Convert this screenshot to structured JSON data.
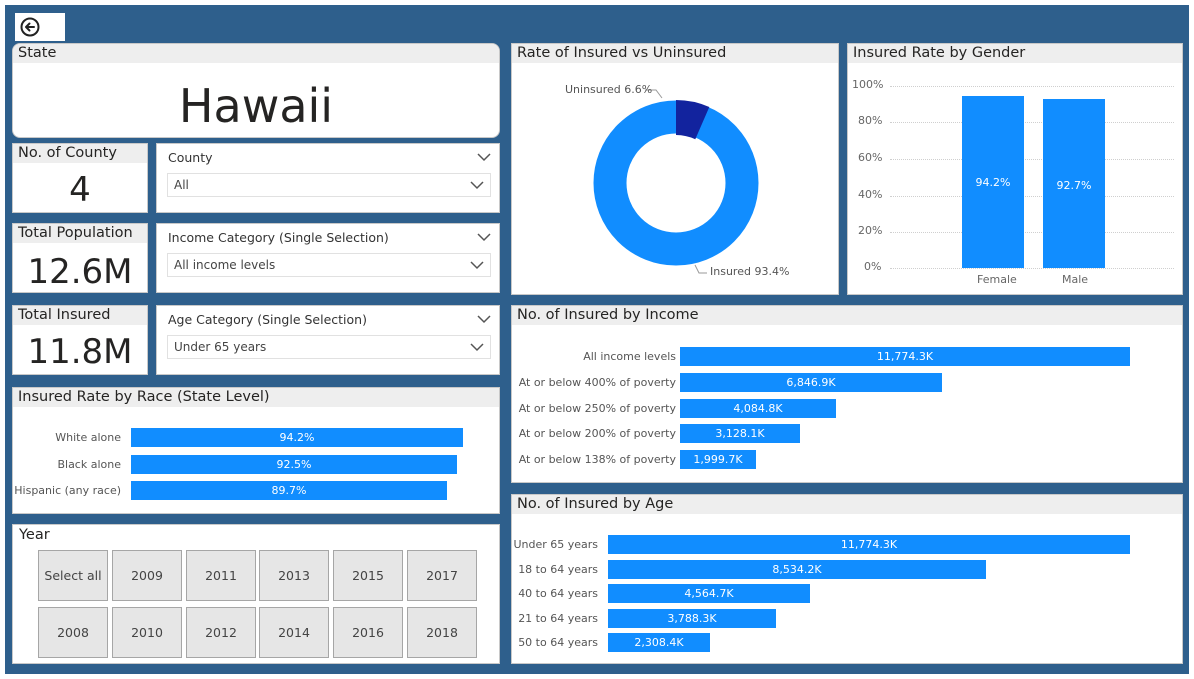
{
  "back_button": {
    "icon": "back-arrow-icon"
  },
  "state_card": {
    "title": "State",
    "value": "Hawaii"
  },
  "county_count": {
    "title": "No. of County",
    "value": "4"
  },
  "total_population": {
    "title": "Total Population",
    "value": "12.6M"
  },
  "total_insured": {
    "title": "Total Insured",
    "value": "11.8M"
  },
  "county_slicer": {
    "title": "County",
    "selected": "All"
  },
  "income_slicer": {
    "title": "Income Category (Single Selection)",
    "selected": "All income levels"
  },
  "age_slicer": {
    "title": "Age Category (Single Selection)",
    "selected": "Under 65 years"
  },
  "race_chart": {
    "title": "Insured Rate by Race (State Level)",
    "rows": [
      {
        "label": "White alone",
        "value_label": "94.2%"
      },
      {
        "label": "Black alone",
        "value_label": "92.5%"
      },
      {
        "label": "Hispanic (any race)",
        "value_label": "89.7%"
      }
    ]
  },
  "year_slicer": {
    "title": "Year",
    "row1": [
      "Select all",
      "2009",
      "2011",
      "2013",
      "2015",
      "2017"
    ],
    "row2": [
      "2008",
      "2010",
      "2012",
      "2014",
      "2016",
      "2018"
    ]
  },
  "donut_chart": {
    "title": "Rate of Insured vs Uninsured",
    "uninsured_label": "Uninsured 6.6%",
    "insured_label": "Insured 93.4%"
  },
  "gender_chart": {
    "title": "Insured Rate by Gender",
    "yticks": [
      "100%",
      "80%",
      "60%",
      "40%",
      "20%",
      "0%"
    ],
    "bars": [
      {
        "label": "Female",
        "value_label": "94.2%"
      },
      {
        "label": "Male",
        "value_label": "92.7%"
      }
    ]
  },
  "income_chart": {
    "title": "No. of Insured by Income",
    "rows": [
      {
        "label": "All income levels",
        "value_label": "11,774.3K"
      },
      {
        "label": "At or below 400% of poverty",
        "value_label": "6,846.9K"
      },
      {
        "label": "At or below 250% of poverty",
        "value_label": "4,084.8K"
      },
      {
        "label": "At or below 200% of poverty",
        "value_label": "3,128.1K"
      },
      {
        "label": "At or below 138% of poverty",
        "value_label": "1,999.7K"
      }
    ]
  },
  "age_chart": {
    "title": "No. of Insured by Age",
    "rows": [
      {
        "label": "Under 65 years",
        "value_label": "11,774.3K"
      },
      {
        "label": "18 to 64 years",
        "value_label": "8,534.2K"
      },
      {
        "label": "40 to 64 years",
        "value_label": "4,564.7K"
      },
      {
        "label": "21 to 64 years",
        "value_label": "3,788.3K"
      },
      {
        "label": "50 to 64 years",
        "value_label": "2,308.4K"
      }
    ]
  },
  "colors": {
    "bar": "#118dff",
    "uninsured": "#12239e",
    "canvas": "#2e5f8c"
  },
  "chart_data": [
    {
      "type": "pie",
      "title": "Rate of Insured vs Uninsured",
      "categories": [
        "Uninsured",
        "Insured"
      ],
      "values": [
        6.6,
        93.4
      ]
    },
    {
      "type": "bar",
      "title": "Insured Rate by Gender",
      "categories": [
        "Female",
        "Male"
      ],
      "values": [
        94.2,
        92.7
      ],
      "ylim": [
        0,
        100
      ]
    },
    {
      "type": "bar",
      "title": "Insured Rate by Race (State Level)",
      "categories": [
        "White alone",
        "Black alone",
        "Hispanic (any race)"
      ],
      "values": [
        94.2,
        92.5,
        89.7
      ]
    },
    {
      "type": "bar",
      "title": "No. of Insured by Income",
      "categories": [
        "All income levels",
        "At or below 400% of poverty",
        "At or below 250% of poverty",
        "At or below 200% of poverty",
        "At or below 138% of poverty"
      ],
      "values": [
        11774.3,
        6846.9,
        4084.8,
        3128.1,
        1999.7
      ]
    },
    {
      "type": "bar",
      "title": "No. of Insured by Age",
      "categories": [
        "Under 65 years",
        "18 to 64 years",
        "40 to 64 years",
        "21 to 64 years",
        "50 to 64 years"
      ],
      "values": [
        11774.3,
        8534.2,
        4564.7,
        3788.3,
        2308.4
      ]
    }
  ]
}
